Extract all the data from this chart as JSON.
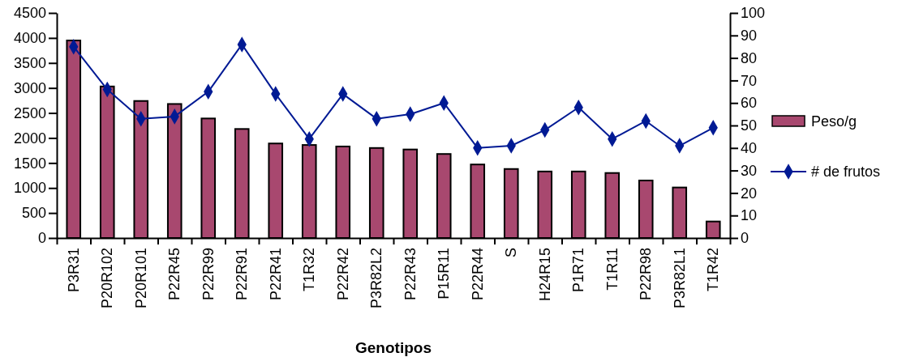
{
  "chart_data": {
    "type": "bar",
    "xlabel": "Genotipos",
    "categories": [
      "P3R31",
      "P20R102",
      "P20R101",
      "P22R45",
      "P22R99",
      "P22R91",
      "P22R41",
      "T1R32",
      "P22R42",
      "P3R82L2",
      "P22R43",
      "P15R11",
      "P22R44",
      "S",
      "H24R15",
      "P1R71",
      "T1R11",
      "P22R98",
      "P3R82L1",
      "T1R42"
    ],
    "series": [
      {
        "name": "Peso/g",
        "color": "#a8486f",
        "values": [
          3950,
          3030,
          2740,
          2680,
          2390,
          2180,
          1890,
          1860,
          1830,
          1800,
          1770,
          1680,
          1470,
          1380,
          1330,
          1330,
          1300,
          1150,
          1010,
          330
        ]
      },
      {
        "name": "# de frutos",
        "type": "line",
        "axis": "y2",
        "color": "#001a94",
        "marker": "diamond",
        "values": [
          85,
          66,
          53,
          54,
          65,
          86,
          64,
          44,
          64,
          53,
          55,
          60,
          40,
          41,
          48,
          58,
          44,
          52,
          41,
          49
        ]
      }
    ],
    "ylim": [
      0,
      4500
    ],
    "yticks": [
      0,
      500,
      1000,
      1500,
      2000,
      2500,
      3000,
      3500,
      4000,
      4500
    ],
    "y2lim": [
      0,
      100
    ],
    "y2ticks": [
      0,
      10,
      20,
      30,
      40,
      50,
      60,
      70,
      80,
      90,
      100
    ],
    "grid": false,
    "legend": "right"
  }
}
